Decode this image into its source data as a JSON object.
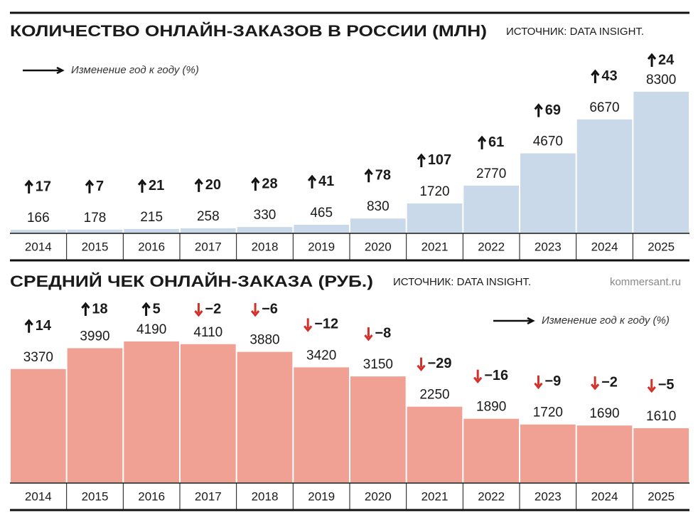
{
  "chart_data": [
    {
      "type": "bar",
      "title": "КОЛИЧЕСТВО ОНЛАЙН-ЗАКАЗОВ В РОССИИ (МЛН)",
      "source": "ИСТОЧНИК: DATA INSIGHT.",
      "legend_label": "Изменение год к году (%)",
      "legend_position": "top-left",
      "color": "#c9d9ea",
      "categories": [
        "2014",
        "2015",
        "2016",
        "2017",
        "2018",
        "2019",
        "2020",
        "2021",
        "2022",
        "2023",
        "2024",
        "2025"
      ],
      "values": [
        166,
        178,
        215,
        258,
        330,
        465,
        830,
        1720,
        2770,
        4670,
        6670,
        8300
      ],
      "changes": [
        17,
        7,
        21,
        20,
        28,
        41,
        78,
        107,
        61,
        69,
        43,
        24
      ],
      "change_labels": [
        "17",
        "7",
        "21",
        "20",
        "28",
        "41",
        "78",
        "107",
        "61",
        "69",
        "43",
        "24"
      ]
    },
    {
      "type": "bar",
      "title": "СРЕДНИЙ ЧЕК ОНЛАЙН-ЗАКАЗА (РУБ.)",
      "source": "ИСТОЧНИК: DATA INSIGHT.",
      "credit": "kommersant.ru",
      "legend_label": "Изменение год к году (%)",
      "legend_position": "top-right",
      "color": "#f0a193",
      "categories": [
        "2014",
        "2015",
        "2016",
        "2017",
        "2018",
        "2019",
        "2020",
        "2021",
        "2022",
        "2023",
        "2024",
        "2025"
      ],
      "values": [
        3370,
        3990,
        4190,
        4110,
        3880,
        3420,
        3150,
        2250,
        1890,
        1720,
        1690,
        1610
      ],
      "changes": [
        14,
        18,
        5,
        -2,
        -6,
        -12,
        -8,
        -29,
        -16,
        -9,
        -2,
        -5
      ],
      "change_labels": [
        "14",
        "18",
        "5",
        "−2",
        "−6",
        "−12",
        "−8",
        "−29",
        "−16",
        "−9",
        "−2",
        "−5"
      ]
    }
  ]
}
